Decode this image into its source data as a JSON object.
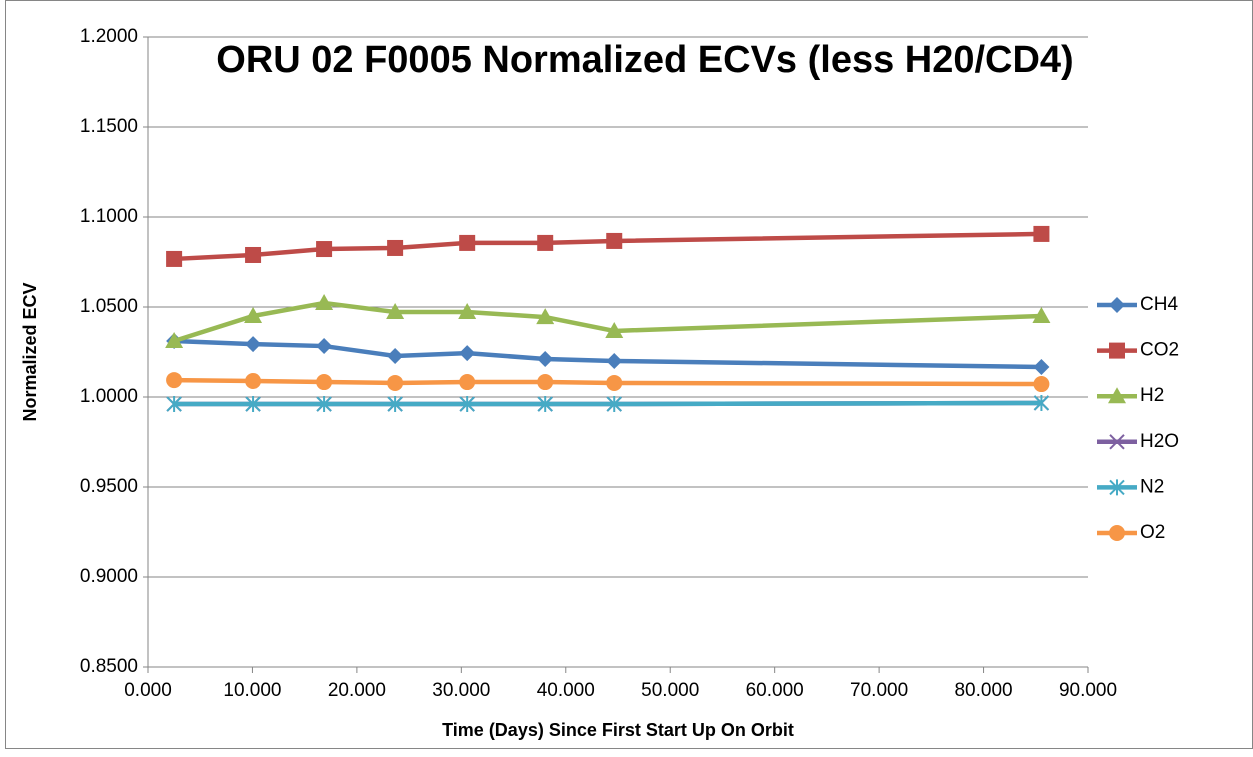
{
  "chart_data": {
    "type": "line",
    "title": "ORU 02 F0005 Normalized ECVs (less H20/CD4)",
    "x_label": "Time (Days) Since First Start Up On Orbit",
    "y_label": "Normalized ECV",
    "x": [
      2.5,
      10.06,
      16.86,
      23.66,
      30.56,
      38.03,
      44.64,
      85.54
    ],
    "series": [
      {
        "name": "CH4",
        "color": "#4a7ebb",
        "marker": "diamond",
        "values": [
          1.0311,
          1.0294,
          1.0283,
          1.0228,
          1.0244,
          1.0211,
          1.02,
          1.0167
        ]
      },
      {
        "name": "CO2",
        "color": "#be4b48",
        "marker": "square",
        "values": [
          1.0767,
          1.0789,
          1.0822,
          1.0828,
          1.0856,
          1.0856,
          1.0867,
          1.0906
        ]
      },
      {
        "name": "H2",
        "color": "#98b954",
        "marker": "triangle",
        "values": [
          1.0311,
          1.045,
          1.0522,
          1.0472,
          1.0472,
          1.0444,
          1.0367,
          1.045
        ]
      },
      {
        "name": "H2O",
        "color": "#7d60a0",
        "marker": "x",
        "values": [
          0.9961,
          0.9961,
          0.9961,
          0.9961,
          0.9961,
          0.9961,
          0.9961,
          0.9967
        ]
      },
      {
        "name": "N2",
        "color": "#46aac5",
        "marker": "star",
        "values": [
          0.9961,
          0.9961,
          0.9961,
          0.9961,
          0.9961,
          0.9961,
          0.9961,
          0.9967
        ]
      },
      {
        "name": "O2",
        "color": "#f79646",
        "marker": "circle",
        "values": [
          1.0094,
          1.0089,
          1.0083,
          1.0078,
          1.0083,
          1.0083,
          1.0078,
          1.0072
        ]
      }
    ],
    "xlim": [
      0,
      90
    ],
    "xticks": [
      {
        "value": 0,
        "label": "0.000"
      },
      {
        "value": 10,
        "label": "10.000"
      },
      {
        "value": 20,
        "label": "20.000"
      },
      {
        "value": 30,
        "label": "30.000"
      },
      {
        "value": 40,
        "label": "40.000"
      },
      {
        "value": 50,
        "label": "50.000"
      },
      {
        "value": 60,
        "label": "60.000"
      },
      {
        "value": 70,
        "label": "70.000"
      },
      {
        "value": 80,
        "label": "80.000"
      },
      {
        "value": 90,
        "label": "90.000"
      }
    ],
    "ylim": [
      0.85,
      1.2
    ],
    "yticks": [
      {
        "value": 0.85,
        "label": "0.8500"
      },
      {
        "value": 0.9,
        "label": "0.9000"
      },
      {
        "value": 0.95,
        "label": "0.9500"
      },
      {
        "value": 1.0,
        "label": "1.0000"
      },
      {
        "value": 1.05,
        "label": "1.0500"
      },
      {
        "value": 1.1,
        "label": "1.1000"
      },
      {
        "value": 1.15,
        "label": "1.1500"
      },
      {
        "value": 1.2,
        "label": "1.2000"
      }
    ],
    "grid": true,
    "legend": "right"
  }
}
